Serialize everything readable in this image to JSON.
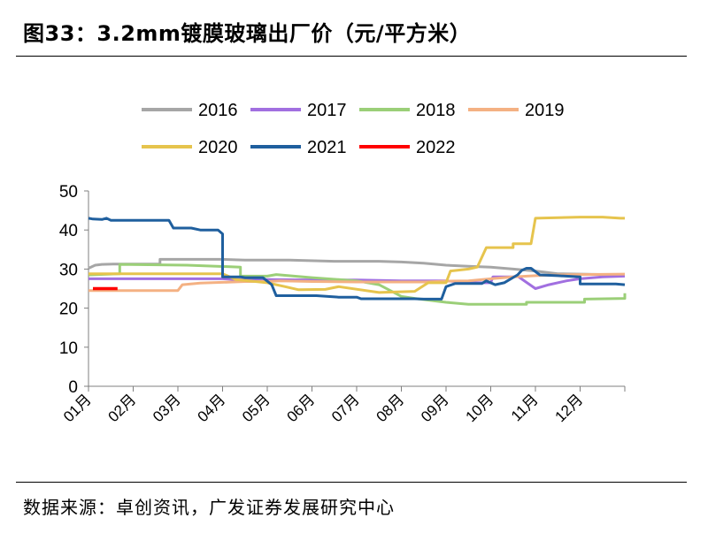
{
  "title": "图33：3.2mm镀膜玻璃出厂价（元/平方米）",
  "source": "数据来源：卓创资讯，广发证券发展研究中心",
  "chart_data": {
    "type": "line",
    "ylim": [
      0,
      50
    ],
    "yticks": [
      0,
      10,
      20,
      30,
      40,
      50
    ],
    "xlim": [
      0,
      12
    ],
    "xticks": [
      "01月",
      "02月",
      "03月",
      "04月",
      "05月",
      "06月",
      "07月",
      "08月",
      "09月",
      "10月",
      "11月",
      "12月"
    ],
    "legend_position": "top",
    "series": [
      {
        "name": "2016",
        "color": "#a6a6a6",
        "points": [
          [
            0,
            30.2
          ],
          [
            0.15,
            31
          ],
          [
            0.3,
            31.2
          ],
          [
            0.6,
            31.3
          ],
          [
            1.6,
            31.3
          ],
          [
            1.6,
            32.5
          ],
          [
            3,
            32.5
          ],
          [
            3.5,
            32.3
          ],
          [
            4.5,
            32.3
          ],
          [
            5.5,
            32
          ],
          [
            6.5,
            32
          ],
          [
            7,
            31.8
          ],
          [
            7.5,
            31.5
          ],
          [
            8,
            31
          ],
          [
            8.5,
            30.7
          ],
          [
            9,
            30.5
          ],
          [
            9.5,
            30
          ],
          [
            10,
            29.5
          ],
          [
            10.5,
            28.8
          ],
          [
            11,
            28.7
          ],
          [
            12,
            28.5
          ]
        ]
      },
      {
        "name": "2017",
        "color": "#a16fe0",
        "points": [
          [
            0,
            27.5
          ],
          [
            3,
            27.5
          ],
          [
            3.3,
            27.3
          ],
          [
            4,
            27.3
          ],
          [
            5,
            27.2
          ],
          [
            6,
            27.2
          ],
          [
            7,
            27
          ],
          [
            8,
            27
          ],
          [
            8.5,
            26.5
          ],
          [
            9,
            26.5
          ],
          [
            9.05,
            28
          ],
          [
            9.5,
            28
          ],
          [
            9.6,
            28.2
          ],
          [
            10,
            25
          ],
          [
            10.3,
            26
          ],
          [
            10.7,
            27
          ],
          [
            11,
            27.5
          ],
          [
            11.5,
            28
          ],
          [
            12,
            28.2
          ]
        ]
      },
      {
        "name": "2018",
        "color": "#9bcf78",
        "points": [
          [
            0,
            28.5
          ],
          [
            0.7,
            28.8
          ],
          [
            0.7,
            31.2
          ],
          [
            2.2,
            31
          ],
          [
            3.4,
            30.5
          ],
          [
            3.4,
            28.2
          ],
          [
            4,
            28.2
          ],
          [
            4.2,
            28.6
          ],
          [
            5,
            27.8
          ],
          [
            6,
            27
          ],
          [
            6.5,
            26
          ],
          [
            7,
            23
          ],
          [
            7.3,
            22.5
          ],
          [
            8,
            21.5
          ],
          [
            8.5,
            21
          ],
          [
            9.8,
            21
          ],
          [
            9.8,
            21.5
          ],
          [
            10.2,
            21.5
          ],
          [
            11.1,
            21.5
          ],
          [
            11.1,
            22.3
          ],
          [
            12,
            22.5
          ],
          [
            12,
            23.8
          ]
        ]
      },
      {
        "name": "2019",
        "color": "#f4b183",
        "points": [
          [
            0,
            24.5
          ],
          [
            1,
            24.5
          ],
          [
            2,
            24.5
          ],
          [
            2.1,
            26
          ],
          [
            2.5,
            26.4
          ],
          [
            3.5,
            26.8
          ],
          [
            4,
            26.8
          ],
          [
            4.3,
            27
          ],
          [
            5,
            26.8
          ],
          [
            6,
            26.7
          ],
          [
            7,
            26.7
          ],
          [
            7.5,
            26.7
          ],
          [
            8,
            26.9
          ],
          [
            8.5,
            27
          ],
          [
            9,
            27.5
          ],
          [
            9.5,
            28
          ],
          [
            10,
            28.3
          ],
          [
            10.5,
            28.5
          ],
          [
            11,
            28.6
          ],
          [
            12,
            28.7
          ]
        ]
      },
      {
        "name": "2020",
        "color": "#e6c44d",
        "points": [
          [
            0,
            28.8
          ],
          [
            2,
            28.8
          ],
          [
            3,
            28.8
          ],
          [
            3.3,
            27.3
          ],
          [
            4,
            26.5
          ],
          [
            4.4,
            25.5
          ],
          [
            4.7,
            24.7
          ],
          [
            5.3,
            24.8
          ],
          [
            5.6,
            25.5
          ],
          [
            6.5,
            24
          ],
          [
            7.3,
            24.3
          ],
          [
            7.6,
            26.5
          ],
          [
            8,
            26.5
          ],
          [
            8.1,
            29.5
          ],
          [
            8.5,
            30
          ],
          [
            8.7,
            30.5
          ],
          [
            8.9,
            35.5
          ],
          [
            9.5,
            35.5
          ],
          [
            9.5,
            36.5
          ],
          [
            9.9,
            36.5
          ],
          [
            10,
            43
          ],
          [
            11,
            43.3
          ],
          [
            11.5,
            43.3
          ],
          [
            11.9,
            43
          ],
          [
            12,
            43
          ]
        ]
      },
      {
        "name": "2021",
        "color": "#1f5f9e",
        "points": [
          [
            0,
            43
          ],
          [
            0.1,
            42.8
          ],
          [
            0.3,
            42.7
          ],
          [
            0.4,
            43
          ],
          [
            0.5,
            42.5
          ],
          [
            1.8,
            42.5
          ],
          [
            1.9,
            40.5
          ],
          [
            2.3,
            40.5
          ],
          [
            2.5,
            40
          ],
          [
            2.9,
            40
          ],
          [
            3,
            39
          ],
          [
            3,
            28
          ],
          [
            3.4,
            28
          ],
          [
            3.5,
            27.8
          ],
          [
            3.9,
            27.8
          ],
          [
            4.1,
            26
          ],
          [
            4.2,
            23.2
          ],
          [
            5.1,
            23.2
          ],
          [
            5.6,
            22.8
          ],
          [
            6,
            22.8
          ],
          [
            6.1,
            22.4
          ],
          [
            7.3,
            22.4
          ],
          [
            7.5,
            22.3
          ],
          [
            7.9,
            22.3
          ],
          [
            8,
            25.5
          ],
          [
            8.2,
            26.3
          ],
          [
            8.8,
            26.3
          ],
          [
            8.9,
            27
          ],
          [
            9.1,
            26
          ],
          [
            9.3,
            26.5
          ],
          [
            9.6,
            28.5
          ],
          [
            9.7,
            29.7
          ],
          [
            9.8,
            30.2
          ],
          [
            9.9,
            30.2
          ],
          [
            10.1,
            28.5
          ],
          [
            10.5,
            28.3
          ],
          [
            11,
            28
          ],
          [
            11,
            26.2
          ],
          [
            11.8,
            26.2
          ],
          [
            12,
            26
          ]
        ]
      },
      {
        "name": "2022",
        "color": "#ff0000",
        "points": [
          [
            0.1,
            25
          ],
          [
            0.65,
            25
          ]
        ]
      }
    ]
  }
}
